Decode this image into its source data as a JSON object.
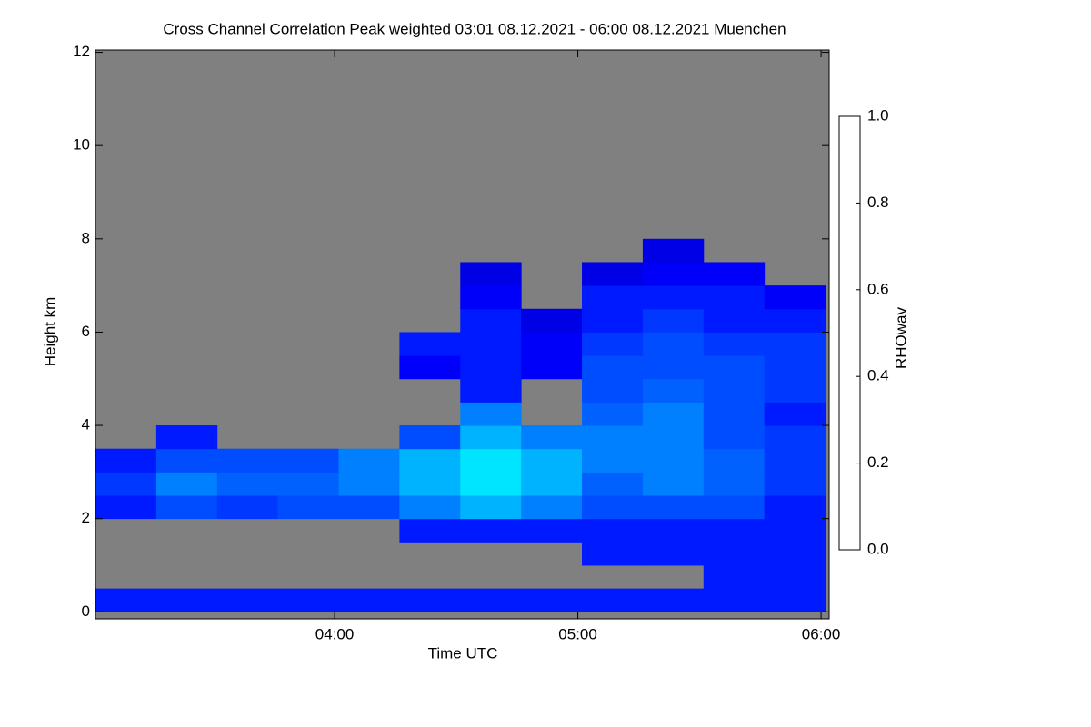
{
  "chart_data": {
    "type": "heatmap",
    "title": "Cross Channel Correlation Peak weighted   03:01 08.12.2021 - 06:00 08.12.2021 Muenchen",
    "xlabel": "Time UTC",
    "ylabel": "Height km",
    "colorbar_label": "RHOwav",
    "xlim": [
      181,
      362
    ],
    "xticks": [
      {
        "value": 240,
        "label": "04:00"
      },
      {
        "value": 300,
        "label": "05:00"
      },
      {
        "value": 360,
        "label": "06:00"
      }
    ],
    "ylim": [
      -0.15,
      12.05
    ],
    "yticks": [
      0,
      2,
      4,
      6,
      8,
      10,
      12
    ],
    "clim": [
      0,
      1
    ],
    "cticks": [
      {
        "value": 0,
        "label": "0.0"
      },
      {
        "value": 0.2,
        "label": "0.2"
      },
      {
        "value": 0.4,
        "label": "0.4"
      },
      {
        "value": 0.6,
        "label": "0.6"
      },
      {
        "value": 0.8,
        "label": "0.8"
      },
      {
        "value": 1,
        "label": "1.0"
      }
    ],
    "x_bins": [
      181,
      196,
      211,
      226,
      241,
      256,
      271,
      286,
      301,
      316,
      331,
      346,
      361
    ],
    "y_bins": [
      0,
      0.5,
      1,
      1.5,
      2,
      2.5,
      3,
      3.5,
      4,
      4.5,
      5,
      5.5,
      6,
      6.5,
      7,
      7.5,
      8
    ],
    "values": [
      [
        0.15,
        0.15,
        0.15,
        0.15,
        0.15,
        0.15,
        0.15,
        0.15,
        0.15,
        0.15,
        0.15,
        0.15
      ],
      [
        null,
        null,
        null,
        null,
        null,
        null,
        null,
        null,
        null,
        null,
        0.15,
        0.15
      ],
      [
        null,
        null,
        null,
        null,
        null,
        null,
        null,
        null,
        0.15,
        0.15,
        0.15,
        0.15
      ],
      [
        null,
        null,
        null,
        null,
        null,
        0.15,
        0.15,
        0.15,
        0.15,
        0.15,
        0.15,
        0.15
      ],
      [
        0.15,
        0.2,
        0.18,
        0.2,
        0.2,
        0.25,
        0.3,
        0.25,
        0.2,
        0.2,
        0.2,
        0.15
      ],
      [
        0.18,
        0.25,
        0.22,
        0.22,
        0.25,
        0.3,
        0.35,
        0.3,
        0.22,
        0.25,
        0.22,
        0.18
      ],
      [
        0.15,
        0.2,
        0.2,
        0.2,
        0.25,
        0.3,
        0.35,
        0.3,
        0.25,
        0.25,
        0.22,
        0.18
      ],
      [
        null,
        0.15,
        null,
        null,
        null,
        0.2,
        0.3,
        0.25,
        0.25,
        0.25,
        0.2,
        0.18
      ],
      [
        null,
        null,
        null,
        null,
        null,
        null,
        0.25,
        null,
        0.22,
        0.25,
        0.2,
        0.15
      ],
      [
        null,
        null,
        null,
        null,
        null,
        null,
        0.15,
        null,
        0.2,
        0.22,
        0.2,
        0.18
      ],
      [
        null,
        null,
        null,
        null,
        null,
        0.12,
        0.15,
        0.12,
        0.2,
        0.2,
        0.2,
        0.18
      ],
      [
        null,
        null,
        null,
        null,
        null,
        0.15,
        0.15,
        0.12,
        0.18,
        0.2,
        0.18,
        0.18
      ],
      [
        null,
        null,
        null,
        null,
        null,
        null,
        0.15,
        0.1,
        0.15,
        0.18,
        0.15,
        0.15
      ],
      [
        null,
        null,
        null,
        null,
        null,
        null,
        0.12,
        null,
        0.15,
        0.15,
        0.15,
        0.12
      ],
      [
        null,
        null,
        null,
        null,
        null,
        null,
        0.1,
        null,
        0.1,
        0.12,
        0.12,
        null
      ],
      [
        null,
        null,
        null,
        null,
        null,
        null,
        null,
        null,
        null,
        0.1,
        null,
        null
      ]
    ],
    "nodata_color": "#808080"
  }
}
